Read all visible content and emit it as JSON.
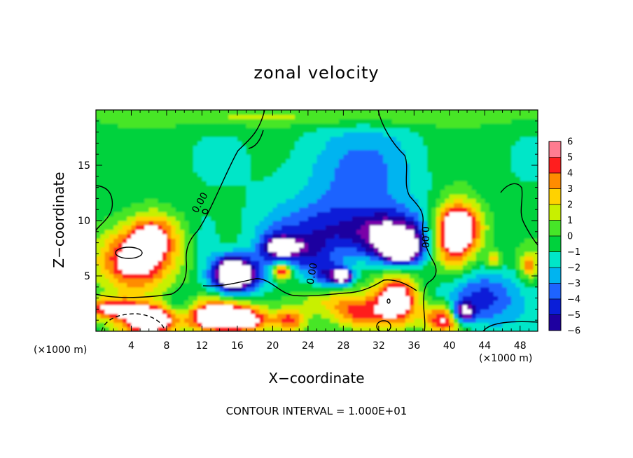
{
  "chart_data": {
    "type": "heatmap",
    "title": "zonal velocity",
    "xlabel": "X−coordinate",
    "ylabel": "Z−coordinate",
    "x_unit_label_left": "(×1000 m)",
    "x_unit_label_right": "(×1000 m)",
    "footer": "CONTOUR INTERVAL = 1.000E+01",
    "xlim": [
      0,
      50
    ],
    "ylim": [
      0,
      20
    ],
    "x_ticks": [
      {
        "value": 4,
        "label": "4"
      },
      {
        "value": 8,
        "label": "8"
      },
      {
        "value": 12,
        "label": "12"
      },
      {
        "value": 16,
        "label": "16"
      },
      {
        "value": 20,
        "label": "20"
      },
      {
        "value": 24,
        "label": "24"
      },
      {
        "value": 28,
        "label": "28"
      },
      {
        "value": 32,
        "label": "32"
      },
      {
        "value": 36,
        "label": "36"
      },
      {
        "value": 40,
        "label": "40"
      },
      {
        "value": 44,
        "label": "44"
      },
      {
        "value": 48,
        "label": "48"
      }
    ],
    "y_ticks": [
      {
        "value": 5,
        "label": "5"
      },
      {
        "value": 10,
        "label": "10"
      },
      {
        "value": 15,
        "label": "15"
      }
    ],
    "colorbar": {
      "range": [
        -6,
        6
      ],
      "ticks": [
        {
          "value": 6,
          "label": "6"
        },
        {
          "value": 5,
          "label": "5"
        },
        {
          "value": 4,
          "label": "4"
        },
        {
          "value": 3,
          "label": "3"
        },
        {
          "value": 2,
          "label": "2"
        },
        {
          "value": 1,
          "label": "1"
        },
        {
          "value": 0,
          "label": "0"
        },
        {
          "value": -1,
          "label": "−1"
        },
        {
          "value": -2,
          "label": "−2"
        },
        {
          "value": -3,
          "label": "−3"
        },
        {
          "value": -4,
          "label": "−4"
        },
        {
          "value": -5,
          "label": "−5"
        },
        {
          "value": -6,
          "label": "−6"
        }
      ],
      "colors": [
        "#7a00a8",
        "#1e00a0",
        "#0a1ed8",
        "#1e64ff",
        "#00b4f0",
        "#00e6c8",
        "#00d23c",
        "#46e628",
        "#c8f000",
        "#ffd200",
        "#ff8c00",
        "#ff1e1e",
        "#ff7c90"
      ]
    },
    "contour_labels": [
      {
        "text": "0.00",
        "x": 11.8,
        "z": 11.6,
        "rotate": -60
      },
      {
        "text": "0.00",
        "x": 37.2,
        "z": 8.5,
        "rotate": 90
      },
      {
        "text": "0.00",
        "x": 24.5,
        "z": 5.2,
        "rotate": -80
      }
    ],
    "field_features": [
      {
        "kind": "high",
        "x": 4.5,
        "z": 6.5,
        "rx": 4.2,
        "rz": 2.8,
        "v": 7.5
      },
      {
        "kind": "high",
        "x": 6.5,
        "z": 8.8,
        "rx": 2.6,
        "rz": 2.0,
        "v": 4.5
      },
      {
        "kind": "high",
        "x": 1.5,
        "z": 2.0,
        "rx": 3.5,
        "rz": 1.0,
        "v": 5.5
      },
      {
        "kind": "high",
        "x": 6.0,
        "z": 1.0,
        "rx": 3.5,
        "rz": 1.3,
        "v": 8.0
      },
      {
        "kind": "high",
        "x": 14.0,
        "z": 1.5,
        "rx": 4.0,
        "rz": 1.5,
        "v": 7.5
      },
      {
        "kind": "high",
        "x": 16.0,
        "z": 1.0,
        "rx": 4.0,
        "rz": 1.0,
        "v": 5.0
      },
      {
        "kind": "high",
        "x": 21.0,
        "z": 5.5,
        "rx": 1.0,
        "rz": 0.7,
        "v": 7.5
      },
      {
        "kind": "high",
        "x": 22.0,
        "z": 1.0,
        "rx": 1.5,
        "rz": 1.0,
        "v": 4.0
      },
      {
        "kind": "high",
        "x": 34.0,
        "z": 2.8,
        "rx": 2.5,
        "rz": 2.2,
        "v": 7.8
      },
      {
        "kind": "high",
        "x": 30.0,
        "z": 1.5,
        "rx": 3.0,
        "rz": 1.5,
        "v": 4.5
      },
      {
        "kind": "high",
        "x": 40.5,
        "z": 8.5,
        "rx": 2.5,
        "rz": 3.0,
        "v": 7.5
      },
      {
        "kind": "high",
        "x": 41.5,
        "z": 9.5,
        "rx": 2.5,
        "rz": 2.0,
        "v": 4.0
      },
      {
        "kind": "high",
        "x": 39.5,
        "z": 1.2,
        "rx": 2.2,
        "rz": 1.3,
        "v": 6.5
      },
      {
        "kind": "high",
        "x": 45.0,
        "z": 6.5,
        "rx": 0.8,
        "rz": 0.7,
        "v": 3.5
      },
      {
        "kind": "high",
        "x": 25.0,
        "z": 19.5,
        "rx": 25.0,
        "rz": 1.0,
        "v": 2.0
      },
      {
        "kind": "high",
        "x": 49.0,
        "z": 6.0,
        "rx": 1.0,
        "rz": 1.2,
        "v": 4.0
      },
      {
        "kind": "high",
        "x": 27.0,
        "z": 2.8,
        "rx": 4.0,
        "rz": 1.5,
        "v": 2.5
      },
      {
        "kind": "low",
        "x": 29.0,
        "z": 14.0,
        "rx": 8.0,
        "rz": 5.0,
        "v": -2.5
      },
      {
        "kind": "low",
        "x": 28.5,
        "z": 9.0,
        "rx": 9.0,
        "rz": 2.5,
        "v": -3.5
      },
      {
        "kind": "low",
        "x": 33.5,
        "z": 8.5,
        "rx": 3.5,
        "rz": 2.0,
        "v": -5.0
      },
      {
        "kind": "low",
        "x": 34.5,
        "z": 7.5,
        "rx": 2.2,
        "rz": 1.3,
        "v": -8.0
      },
      {
        "kind": "low",
        "x": 20.5,
        "z": 7.5,
        "rx": 2.0,
        "rz": 1.5,
        "v": -4.5
      },
      {
        "kind": "low",
        "x": 21.5,
        "z": 7.7,
        "rx": 1.3,
        "rz": 0.5,
        "v": -8.0
      },
      {
        "kind": "low",
        "x": 16.0,
        "z": 5.0,
        "rx": 3.0,
        "rz": 1.8,
        "v": -4.5
      },
      {
        "kind": "low",
        "x": 15.5,
        "z": 5.3,
        "rx": 2.0,
        "rz": 1.4,
        "v": -8.0
      },
      {
        "kind": "low",
        "x": 26.5,
        "z": 5.0,
        "rx": 2.0,
        "rz": 1.2,
        "v": -4.5
      },
      {
        "kind": "low",
        "x": 28.0,
        "z": 5.0,
        "rx": 1.0,
        "rz": 0.6,
        "v": -7.5
      },
      {
        "kind": "low",
        "x": 43.5,
        "z": 3.0,
        "rx": 4.5,
        "rz": 2.5,
        "v": -4.0
      },
      {
        "kind": "low",
        "x": 41.5,
        "z": 1.7,
        "rx": 1.3,
        "rz": 0.9,
        "v": -7.5
      },
      {
        "kind": "low",
        "x": 24.0,
        "z": 7.0,
        "rx": 2.5,
        "rz": 1.5,
        "v": -2.5
      },
      {
        "kind": "low",
        "x": 12.5,
        "z": 8.0,
        "rx": 1.5,
        "rz": 2.5,
        "v": -1.5
      },
      {
        "kind": "low",
        "x": 9.5,
        "z": 2.0,
        "rx": 1.5,
        "rz": 1.5,
        "v": -2.5
      },
      {
        "kind": "low",
        "x": 2.5,
        "z": 1.2,
        "rx": 2.5,
        "rz": 0.7,
        "v": -1.5
      }
    ]
  }
}
